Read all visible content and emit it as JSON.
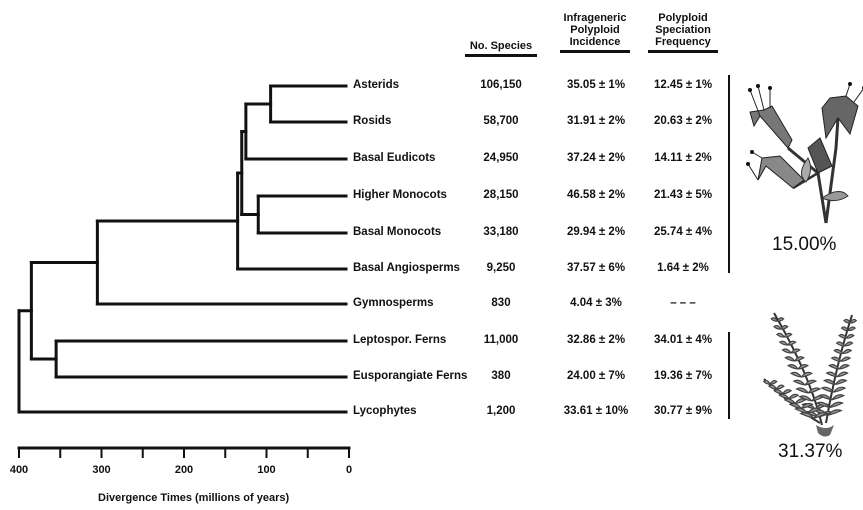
{
  "headers": {
    "species": "No. Species",
    "incidence": [
      "Infrageneric",
      "Polyploid",
      "Incidence"
    ],
    "frequency": [
      "Polyploid",
      "Speciation",
      "Frequency"
    ]
  },
  "rows": [
    {
      "name": "Asterids",
      "species": "106,150",
      "incidence": "35.05 ± 1%",
      "frequency": "12.45 ± 1%"
    },
    {
      "name": "Rosids",
      "species": "58,700",
      "incidence": "31.91 ± 2%",
      "frequency": "20.63 ± 2%"
    },
    {
      "name": "Basal Eudicots",
      "species": "24,950",
      "incidence": "37.24 ± 2%",
      "frequency": "14.11 ± 2%"
    },
    {
      "name": "Higher Monocots",
      "species": "28,150",
      "incidence": "46.58 ± 2%",
      "frequency": "21.43 ± 5%"
    },
    {
      "name": "Basal Monocots",
      "species": "33,180",
      "incidence": "29.94 ± 2%",
      "frequency": "25.74 ± 4%"
    },
    {
      "name": "Basal Angiosperms",
      "species": "9,250",
      "incidence": "37.57 ± 6%",
      "frequency": "1.64 ± 2%"
    },
    {
      "name": "Gymnosperms",
      "species": "830",
      "incidence": "4.04 ± 3%",
      "frequency": "– – –"
    },
    {
      "name": "Leptospor. Ferns",
      "species": "11,000",
      "incidence": "32.86 ± 2%",
      "frequency": "34.01 ± 4%"
    },
    {
      "name": "Eusporangiate Ferns",
      "species": "380",
      "incidence": "24.00 ± 7%",
      "frequency": "19.36 ± 7%"
    },
    {
      "name": "Lycophytes",
      "species": "1,200",
      "incidence": "33.61 ± 10%",
      "frequency": "30.77 ± 9%"
    }
  ],
  "groups": [
    {
      "percent": "15.00%",
      "icon": "flower-icon"
    },
    {
      "percent": "31.37%",
      "icon": "fern-icon"
    }
  ],
  "axis": {
    "title": "Divergence Times (millions of years)",
    "ticks": [
      "400",
      "300",
      "200",
      "100",
      "0"
    ],
    "min": 0,
    "max": 400
  },
  "node_ages": {
    "asterids_rosids": 95,
    "eudicots": 125,
    "monocots": 110,
    "eudicot_monocot": 130,
    "angiosperms": 135,
    "seed_plants": 305,
    "ferns": 355,
    "euphyllophytes": 385,
    "vascular": 400
  },
  "colors": {
    "ink": "#111111"
  }
}
